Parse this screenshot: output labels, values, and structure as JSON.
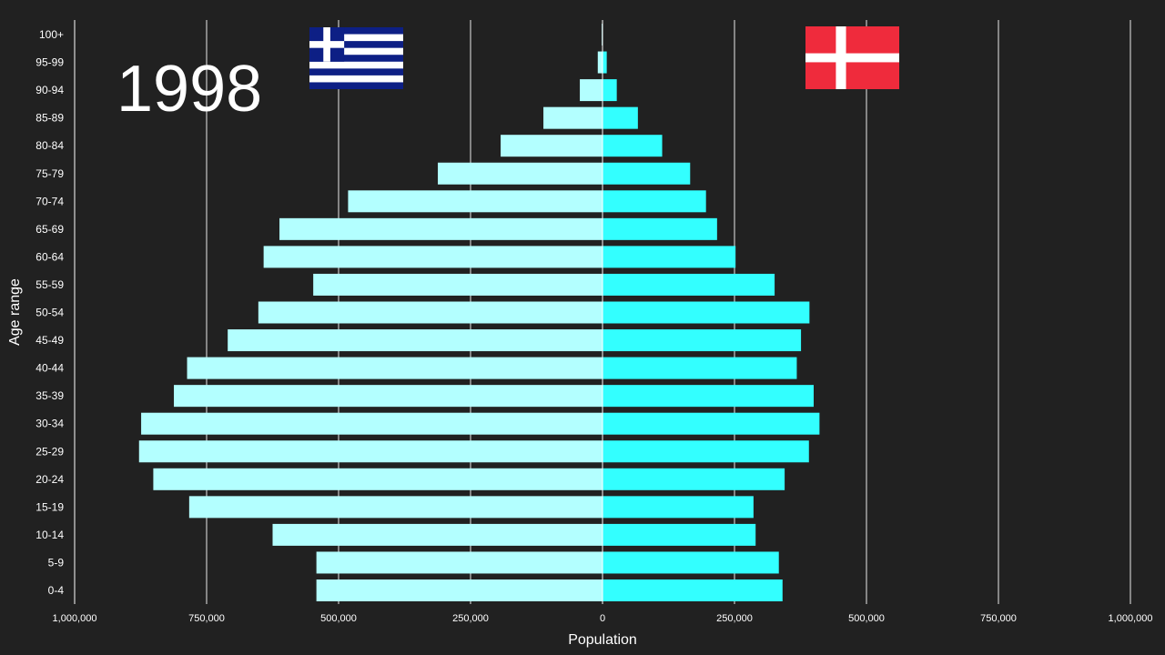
{
  "year": "1998",
  "flags": {
    "left": {
      "country": "Greece",
      "icon": "greece-flag-icon",
      "colors": {
        "blue": "#0d1f85",
        "white": "#ffffff"
      }
    },
    "right": {
      "country": "Denmark",
      "icon": "denmark-flag-icon",
      "colors": {
        "red": "#ef2b3c",
        "white": "#ffffff"
      }
    }
  },
  "colors": {
    "background": "#212121",
    "left_bar": "#b3ffff",
    "right_bar": "#33ffff",
    "grid": "#ffffff",
    "text": "#ffffff"
  },
  "chart_data": {
    "type": "bar",
    "orientation": "horizontal",
    "style": "population-pyramid",
    "xlabel": "Population",
    "ylabel": "Age range",
    "xlim": [
      -1000000,
      1000000
    ],
    "x_ticks": [
      -1000000,
      -750000,
      -500000,
      -250000,
      0,
      250000,
      500000,
      750000,
      1000000
    ],
    "x_tick_labels": [
      "1,000,000",
      "750,000",
      "500,000",
      "250,000",
      "0",
      "250,000",
      "500,000",
      "750,000",
      "1,000,000"
    ],
    "grid": true,
    "legend": "none",
    "categories": [
      "100+",
      "95-99",
      "90-94",
      "85-89",
      "80-84",
      "75-79",
      "70-74",
      "65-69",
      "60-64",
      "55-59",
      "50-54",
      "45-49",
      "40-44",
      "35-39",
      "30-34",
      "25-29",
      "20-24",
      "15-19",
      "10-14",
      "5-9",
      "0-4"
    ],
    "series": [
      {
        "side": "left",
        "values": [
          1500,
          9000,
          43000,
          112000,
          193000,
          312000,
          482000,
          612000,
          642000,
          548000,
          652000,
          710000,
          787000,
          812000,
          874000,
          878000,
          851000,
          783000,
          625000,
          542000,
          542000
        ]
      },
      {
        "side": "right",
        "values": [
          500,
          8000,
          27000,
          67000,
          113000,
          166000,
          196000,
          217000,
          252000,
          326000,
          392000,
          376000,
          368000,
          400000,
          411000,
          391000,
          345000,
          286000,
          290000,
          334000,
          341000
        ]
      }
    ]
  }
}
